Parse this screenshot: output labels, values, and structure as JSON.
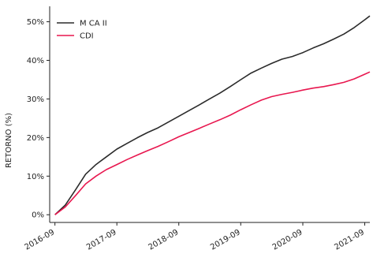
{
  "chart_data": {
    "type": "line",
    "title": "",
    "xlabel": "",
    "ylabel": "RETORNO (%)",
    "x_ticks": [
      "2016-09",
      "2017-09",
      "2018-09",
      "2019-09",
      "2020-09",
      "2021-09"
    ],
    "y_ticks": [
      "0%",
      "10%",
      "20%",
      "30%",
      "40%",
      "50%"
    ],
    "ylim": [
      -2,
      54
    ],
    "xlim": [
      "2016-08-01",
      "2021-10-01"
    ],
    "grid": false,
    "legend_position": "top-left",
    "series": [
      {
        "name": "M CA II",
        "color": "#2b2b2b",
        "points": [
          [
            "2016-09-01",
            0.0
          ],
          [
            "2016-11-01",
            2.5
          ],
          [
            "2017-01-01",
            6.5
          ],
          [
            "2017-03-01",
            10.5
          ],
          [
            "2017-05-01",
            13.0
          ],
          [
            "2017-07-01",
            15.0
          ],
          [
            "2017-09-01",
            17.0
          ],
          [
            "2017-11-01",
            18.5
          ],
          [
            "2018-01-01",
            20.0
          ],
          [
            "2018-03-01",
            21.3
          ],
          [
            "2018-05-01",
            22.5
          ],
          [
            "2018-07-01",
            24.0
          ],
          [
            "2018-09-01",
            25.5
          ],
          [
            "2018-11-01",
            27.0
          ],
          [
            "2019-01-01",
            28.5
          ],
          [
            "2019-03-01",
            30.0
          ],
          [
            "2019-05-01",
            31.5
          ],
          [
            "2019-07-01",
            33.2
          ],
          [
            "2019-09-01",
            35.0
          ],
          [
            "2019-11-01",
            36.7
          ],
          [
            "2020-01-01",
            38.0
          ],
          [
            "2020-03-01",
            39.2
          ],
          [
            "2020-05-01",
            40.3
          ],
          [
            "2020-07-01",
            41.0
          ],
          [
            "2020-09-01",
            42.0
          ],
          [
            "2020-11-01",
            43.2
          ],
          [
            "2021-01-01",
            44.3
          ],
          [
            "2021-03-01",
            45.5
          ],
          [
            "2021-05-01",
            46.8
          ],
          [
            "2021-07-01",
            48.5
          ],
          [
            "2021-09-01",
            50.5
          ],
          [
            "2021-10-01",
            51.5
          ]
        ]
      },
      {
        "name": "CDI",
        "color": "#e8174f",
        "points": [
          [
            "2016-09-01",
            0.0
          ],
          [
            "2016-11-01",
            2.0
          ],
          [
            "2017-01-01",
            5.0
          ],
          [
            "2017-03-01",
            8.0
          ],
          [
            "2017-05-01",
            10.0
          ],
          [
            "2017-07-01",
            11.7
          ],
          [
            "2017-09-01",
            13.0
          ],
          [
            "2017-11-01",
            14.3
          ],
          [
            "2018-01-01",
            15.5
          ],
          [
            "2018-03-01",
            16.6
          ],
          [
            "2018-05-01",
            17.7
          ],
          [
            "2018-07-01",
            18.9
          ],
          [
            "2018-09-01",
            20.2
          ],
          [
            "2018-11-01",
            21.3
          ],
          [
            "2019-01-01",
            22.4
          ],
          [
            "2019-03-01",
            23.5
          ],
          [
            "2019-05-01",
            24.6
          ],
          [
            "2019-07-01",
            25.8
          ],
          [
            "2019-09-01",
            27.2
          ],
          [
            "2019-11-01",
            28.5
          ],
          [
            "2020-01-01",
            29.7
          ],
          [
            "2020-03-01",
            30.6
          ],
          [
            "2020-05-01",
            31.2
          ],
          [
            "2020-07-01",
            31.7
          ],
          [
            "2020-09-01",
            32.3
          ],
          [
            "2020-11-01",
            32.8
          ],
          [
            "2021-01-01",
            33.2
          ],
          [
            "2021-03-01",
            33.7
          ],
          [
            "2021-05-01",
            34.3
          ],
          [
            "2021-07-01",
            35.2
          ],
          [
            "2021-09-01",
            36.4
          ],
          [
            "2021-10-01",
            37.0
          ]
        ]
      }
    ]
  }
}
